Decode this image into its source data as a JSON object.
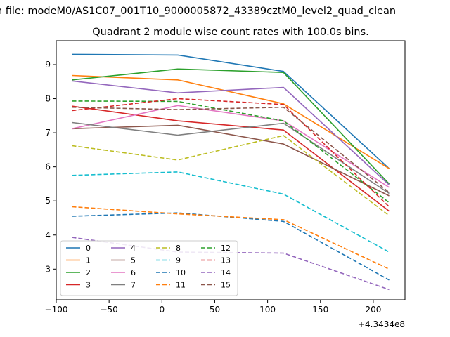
{
  "chart_data": {
    "type": "line",
    "suptitle": "n file: modeM0/AS1C07_001T10_9000005872_43389cztM0_level2_quad_clean",
    "title": "Quadrant 2 module wise count rates with 100.0s bins.",
    "xlabel": "",
    "ylabel": "",
    "x_offset_label": "+4.3434e8",
    "xlim": [
      -100,
      230
    ],
    "ylim": [
      2.1,
      9.7
    ],
    "xticks": [
      -100,
      -50,
      0,
      50,
      100,
      150,
      200
    ],
    "xtick_labels": [
      "−100",
      "−50",
      "0",
      "50",
      "100",
      "150",
      "200"
    ],
    "yticks": [
      3,
      4,
      5,
      6,
      7,
      8,
      9
    ],
    "ytick_labels": [
      "3",
      "4",
      "5",
      "6",
      "7",
      "8",
      "9"
    ],
    "grid": false,
    "legend_placement": "lower-left",
    "x": [
      -85,
      15,
      115,
      215
    ],
    "series": [
      {
        "name": "0",
        "color": "#1f77b4",
        "dash": "solid",
        "values": [
          9.3,
          9.28,
          8.8,
          5.95
        ]
      },
      {
        "name": "1",
        "color": "#ff7f0e",
        "dash": "solid",
        "values": [
          8.68,
          8.55,
          7.85,
          5.95
        ]
      },
      {
        "name": "2",
        "color": "#2ca02c",
        "dash": "solid",
        "values": [
          8.55,
          8.87,
          8.77,
          5.5
        ]
      },
      {
        "name": "3",
        "color": "#d62728",
        "dash": "solid",
        "values": [
          7.78,
          7.35,
          7.08,
          4.7
        ]
      },
      {
        "name": "4",
        "color": "#9467bd",
        "dash": "solid",
        "values": [
          8.52,
          8.17,
          8.33,
          5.47
        ]
      },
      {
        "name": "5",
        "color": "#8c564b",
        "dash": "solid",
        "values": [
          7.12,
          7.22,
          6.67,
          5.15
        ]
      },
      {
        "name": "6",
        "color": "#e377c2",
        "dash": "solid",
        "values": [
          7.12,
          7.8,
          7.35,
          5.4
        ]
      },
      {
        "name": "7",
        "color": "#7f7f7f",
        "dash": "solid",
        "values": [
          7.3,
          6.93,
          7.28,
          5.22
        ]
      },
      {
        "name": "8",
        "color": "#bcbd22",
        "dash": "dashed",
        "values": [
          6.62,
          6.2,
          6.92,
          4.57
        ]
      },
      {
        "name": "9",
        "color": "#17becf",
        "dash": "dashed",
        "values": [
          5.75,
          5.85,
          5.2,
          3.5
        ]
      },
      {
        "name": "10",
        "color": "#1f77b4",
        "dash": "dashed",
        "values": [
          4.55,
          4.65,
          4.4,
          2.68
        ]
      },
      {
        "name": "11",
        "color": "#ff7f0e",
        "dash": "dashed",
        "values": [
          4.83,
          4.62,
          4.45,
          3.0
        ]
      },
      {
        "name": "12",
        "color": "#2ca02c",
        "dash": "dashed",
        "values": [
          7.93,
          7.92,
          7.35,
          4.95
        ]
      },
      {
        "name": "13",
        "color": "#d62728",
        "dash": "dashed",
        "values": [
          7.65,
          8.0,
          7.83,
          4.83
        ]
      },
      {
        "name": "14",
        "color": "#9467bd",
        "dash": "dashed",
        "values": [
          3.93,
          3.5,
          3.47,
          2.4
        ]
      },
      {
        "name": "15",
        "color": "#8c564b",
        "dash": "dashed",
        "values": [
          7.75,
          7.68,
          7.75,
          5.25
        ]
      }
    ]
  }
}
